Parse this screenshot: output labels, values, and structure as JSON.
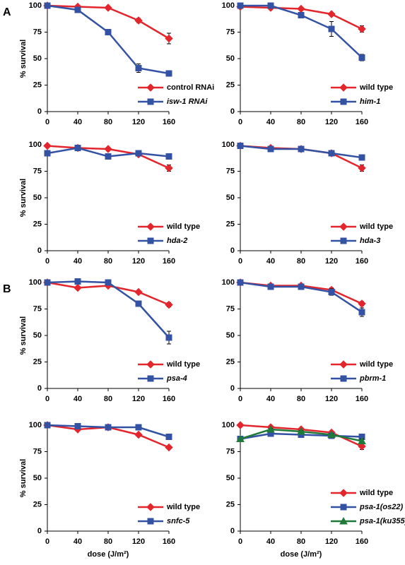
{
  "chart_data": [
    {
      "type": "line",
      "panel_label": "A",
      "ylabel": "% survival",
      "xlim": [
        0,
        160
      ],
      "xticks": [
        0,
        40,
        80,
        120,
        160
      ],
      "ylim": [
        0,
        100
      ],
      "yticks": [
        0,
        25,
        50,
        75,
        100
      ],
      "legend": "lower right",
      "x": [
        0,
        40,
        80,
        120,
        160
      ],
      "series": [
        {
          "name": "control RNAi",
          "color": "#e3262d",
          "marker": "diamond",
          "values": [
            100,
            99,
            98,
            86,
            69
          ],
          "errors": [
            0,
            1,
            1,
            2,
            5
          ]
        },
        {
          "name": "isw-1 RNAi",
          "color": "#3452a4",
          "marker": "square",
          "values": [
            100,
            96,
            75,
            41,
            36
          ],
          "errors": [
            0,
            1,
            1,
            4,
            1
          ]
        }
      ]
    },
    {
      "type": "line",
      "xlim": [
        0,
        160
      ],
      "xticks": [
        0,
        40,
        80,
        120,
        160
      ],
      "ylim": [
        0,
        100
      ],
      "yticks": [
        0,
        25,
        50,
        75,
        100
      ],
      "legend": "lower right",
      "x": [
        0,
        40,
        80,
        120,
        160
      ],
      "series": [
        {
          "name": "wild type",
          "color": "#e3262d",
          "marker": "diamond",
          "values": [
            99,
            98,
            97,
            92,
            78
          ],
          "errors": [
            0,
            1,
            1,
            1,
            3
          ]
        },
        {
          "name": "him-1",
          "color": "#3452a4",
          "marker": "square",
          "values": [
            100,
            100,
            91,
            78,
            51
          ],
          "errors": [
            0,
            2,
            1,
            7,
            3
          ]
        }
      ]
    },
    {
      "type": "line",
      "ylabel": "% survival",
      "xlim": [
        0,
        160
      ],
      "xticks": [
        0,
        40,
        80,
        120,
        160
      ],
      "ylim": [
        0,
        100
      ],
      "yticks": [
        0,
        25,
        50,
        75,
        100
      ],
      "legend": "lower right",
      "x": [
        0,
        40,
        80,
        120,
        160
      ],
      "series": [
        {
          "name": "wild type",
          "color": "#e3262d",
          "marker": "diamond",
          "values": [
            99,
            97,
            96,
            91,
            78
          ],
          "errors": [
            0,
            1,
            1,
            1,
            3
          ]
        },
        {
          "name": "hda-2",
          "color": "#3452a4",
          "marker": "square",
          "values": [
            92,
            97,
            89,
            92,
            89
          ],
          "errors": [
            0,
            1,
            1,
            1,
            1
          ]
        }
      ]
    },
    {
      "type": "line",
      "xlim": [
        0,
        160
      ],
      "xticks": [
        0,
        40,
        80,
        120,
        160
      ],
      "ylim": [
        0,
        100
      ],
      "yticks": [
        0,
        25,
        50,
        75,
        100
      ],
      "legend": "lower right",
      "x": [
        0,
        40,
        80,
        120,
        160
      ],
      "series": [
        {
          "name": "wild type",
          "color": "#e3262d",
          "marker": "diamond",
          "values": [
            99,
            97,
            96,
            92,
            78
          ],
          "errors": [
            0,
            1,
            1,
            1,
            3
          ]
        },
        {
          "name": "hda-3",
          "color": "#3452a4",
          "marker": "square",
          "values": [
            99,
            96,
            96,
            92,
            88
          ],
          "errors": [
            0,
            1,
            1,
            1,
            1
          ]
        }
      ]
    },
    {
      "type": "line",
      "panel_label": "B",
      "ylabel": "% survival",
      "xlim": [
        0,
        160
      ],
      "xticks": [
        0,
        40,
        80,
        120,
        160
      ],
      "ylim": [
        0,
        100
      ],
      "yticks": [
        0,
        25,
        50,
        75,
        100
      ],
      "legend": "lower right",
      "x": [
        0,
        40,
        80,
        120,
        160
      ],
      "series": [
        {
          "name": "wild type",
          "color": "#e3262d",
          "marker": "diamond",
          "values": [
            100,
            95,
            97,
            91,
            79
          ],
          "errors": [
            0,
            1,
            1,
            1,
            2
          ]
        },
        {
          "name": "psa-4",
          "color": "#3452a4",
          "marker": "square",
          "values": [
            100,
            101,
            100,
            80,
            48
          ],
          "errors": [
            0,
            1,
            1,
            1,
            6
          ]
        }
      ]
    },
    {
      "type": "line",
      "xlim": [
        0,
        160
      ],
      "xticks": [
        0,
        40,
        80,
        120,
        160
      ],
      "ylim": [
        0,
        100
      ],
      "yticks": [
        0,
        25,
        50,
        75,
        100
      ],
      "legend": "lower right",
      "x": [
        0,
        40,
        80,
        120,
        160
      ],
      "series": [
        {
          "name": "wild type",
          "color": "#e3262d",
          "marker": "diamond",
          "values": [
            100,
            97,
            97,
            93,
            80
          ],
          "errors": [
            0,
            1,
            1,
            2,
            2
          ]
        },
        {
          "name": "pbrm-1",
          "color": "#3452a4",
          "marker": "square",
          "values": [
            100,
            96,
            96,
            91,
            72
          ],
          "errors": [
            0,
            1,
            1,
            3,
            4
          ]
        }
      ]
    },
    {
      "type": "line",
      "ylabel": "% survival",
      "xlabel": "dose (J/m²)",
      "xlim": [
        0,
        160
      ],
      "xticks": [
        0,
        40,
        80,
        120,
        160
      ],
      "ylim": [
        0,
        100
      ],
      "yticks": [
        0,
        25,
        50,
        75,
        100
      ],
      "legend": "lower right",
      "x": [
        0,
        40,
        80,
        120,
        160
      ],
      "series": [
        {
          "name": "wild type",
          "color": "#e3262d",
          "marker": "diamond",
          "values": [
            100,
            96,
            98,
            91,
            79
          ],
          "errors": [
            0,
            1,
            1,
            1,
            1
          ]
        },
        {
          "name": "snfc-5",
          "color": "#3452a4",
          "marker": "square",
          "values": [
            100,
            99,
            98,
            98,
            89
          ],
          "errors": [
            0,
            1,
            1,
            1,
            1
          ]
        }
      ]
    },
    {
      "type": "line",
      "xlabel": "dose (J/m²)",
      "xlim": [
        0,
        160
      ],
      "xticks": [
        0,
        40,
        80,
        120,
        160
      ],
      "ylim": [
        0,
        100
      ],
      "yticks": [
        0,
        25,
        50,
        75,
        100
      ],
      "legend": "lower right",
      "x": [
        0,
        40,
        80,
        120,
        160
      ],
      "series": [
        {
          "name": "wild type",
          "color": "#e3262d",
          "marker": "diamond",
          "values": [
            100,
            98,
            96,
            93,
            80
          ],
          "errors": [
            0,
            1,
            1,
            1,
            3
          ]
        },
        {
          "name": "psa-1(os22)",
          "color": "#3452a4",
          "marker": "square",
          "values": [
            87,
            92,
            91,
            90,
            89
          ],
          "errors": [
            0,
            1,
            1,
            1,
            1
          ]
        },
        {
          "name": "psa-1(ku355)",
          "color": "#1f7a3a",
          "marker": "triangle",
          "values": [
            87,
            96,
            94,
            91,
            85
          ],
          "errors": [
            0,
            1,
            1,
            1,
            2
          ]
        }
      ]
    }
  ]
}
